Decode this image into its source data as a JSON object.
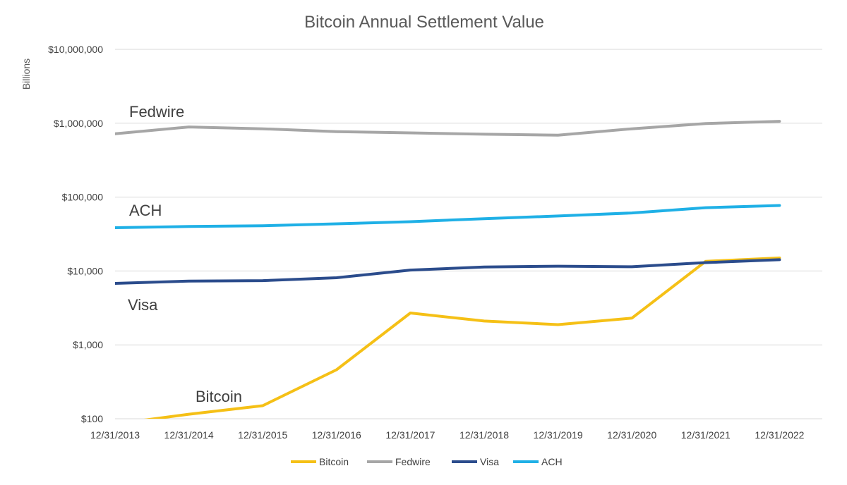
{
  "chart_data": {
    "type": "line",
    "title": "Bitcoin Annual Settlement Value",
    "ylabel": "Billions",
    "xlabel": "",
    "y_scale": "log",
    "ylim": [
      100,
      10000000
    ],
    "grid": true,
    "legend_position": "bottom",
    "y_ticks": [
      "$100",
      "$1,000",
      "$10,000",
      "$100,000",
      "$1,000,000",
      "$10,000,000"
    ],
    "x": [
      "12/31/2013",
      "12/31/2014",
      "12/31/2015",
      "12/31/2016",
      "12/31/2017",
      "12/31/2018",
      "12/31/2019",
      "12/31/2020",
      "12/31/2021",
      "12/31/2022"
    ],
    "series": [
      {
        "name": "Bitcoin",
        "color": "#f5c016",
        "values": [
          85,
          115,
          150,
          460,
          2700,
          2100,
          1880,
          2300,
          13500,
          15000
        ]
      },
      {
        "name": "Fedwire",
        "color": "#a6a6a6",
        "values": [
          720000,
          890000,
          840000,
          770000,
          740000,
          710000,
          690000,
          840000,
          990000,
          1060000
        ]
      },
      {
        "name": "Visa",
        "color": "#2b4c8c",
        "values": [
          6800,
          7300,
          7400,
          8100,
          10300,
          11300,
          11600,
          11400,
          13000,
          14200
        ]
      },
      {
        "name": "ACH",
        "color": "#1fb0e6",
        "values": [
          38500,
          40000,
          41000,
          43500,
          46500,
          51000,
          55500,
          61000,
          72000,
          77000
        ]
      }
    ],
    "annotations": [
      {
        "text": "Fedwire",
        "series": "Fedwire"
      },
      {
        "text": "ACH",
        "series": "ACH"
      },
      {
        "text": "Visa",
        "series": "Visa"
      },
      {
        "text": "Bitcoin",
        "series": "Bitcoin"
      }
    ]
  }
}
